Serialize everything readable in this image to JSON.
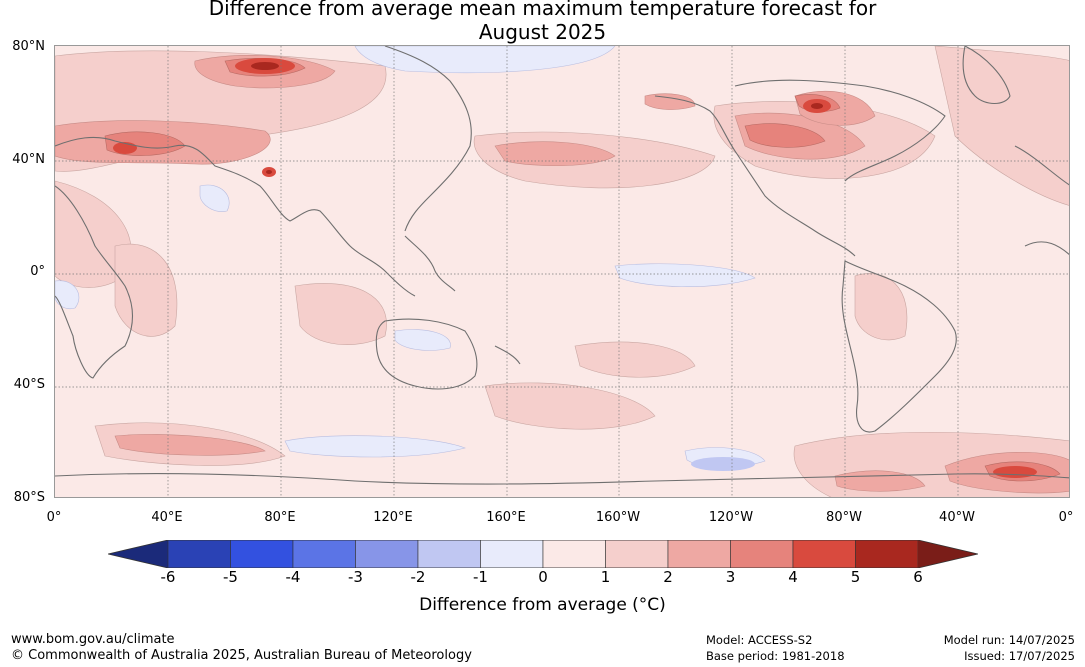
{
  "title_line1": "Difference from average mean maximum temperature forecast for",
  "title_line2": "August 2025",
  "lat_labels": [
    "80°N",
    "40°N",
    "0°",
    "40°S",
    "80°S"
  ],
  "lon_labels": [
    "0°",
    "40°E",
    "80°E",
    "120°E",
    "160°E",
    "160°W",
    "120°W",
    "80°W",
    "40°W",
    "0°"
  ],
  "colorbar": {
    "ticks": [
      "-6",
      "-5",
      "-4",
      "-3",
      "-2",
      "-1",
      "0",
      "1",
      "2",
      "3",
      "4",
      "5",
      "6"
    ],
    "colors": [
      "#1b2a7a",
      "#2a42b5",
      "#3351e0",
      "#5b74e6",
      "#8795e8",
      "#c0c7f2",
      "#e8ebfb",
      "#fbe9e7",
      "#f5cfcc",
      "#eea8a3",
      "#e6837c",
      "#d94a3e",
      "#a9281f",
      "#7a1d18"
    ],
    "title": "Difference from average (°C)"
  },
  "footer": {
    "website": "www.bom.gov.au/climate",
    "copyright": "© Commonwealth of Australia 2025, Australian Bureau of Meteorology",
    "model": "Model: ACCESS-S2",
    "base_period": "Base period: 1981-2018",
    "model_run": "Model run: 14/07/2025",
    "issued": "Issued: 17/07/2025"
  }
}
